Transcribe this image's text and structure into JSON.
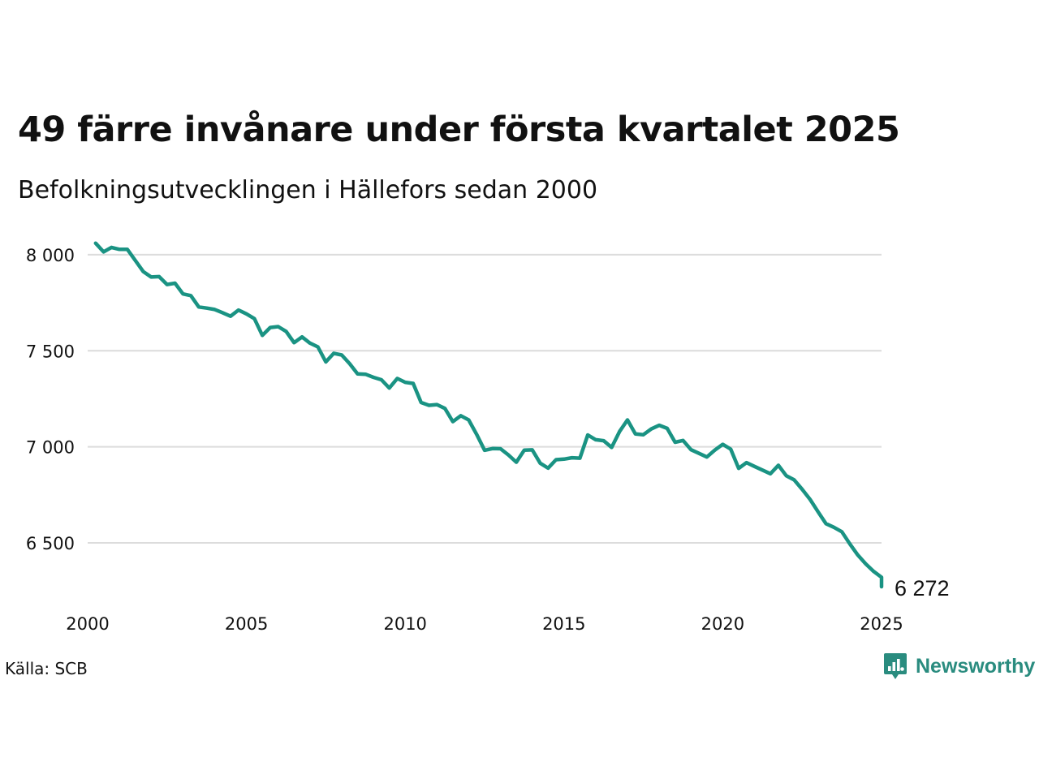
{
  "chart_data": {
    "type": "line",
    "title": "49 färre invånare under första kvartalet 2025",
    "subtitle": "Befolkningsutvecklingen i Hällefors sedan 2000",
    "xlabel": "",
    "ylabel": "",
    "xlim": [
      2000,
      2025
    ],
    "ylim": [
      6272,
      8063
    ],
    "x_ticks": [
      "2000",
      "2005",
      "2010",
      "2015",
      "2020",
      "2025"
    ],
    "y_ticks": [
      "6 500",
      "7 000",
      "7 500",
      "8 000"
    ],
    "y_tick_values": [
      6500,
      7000,
      7500,
      8000
    ],
    "x_tick_values": [
      2000,
      2005,
      2010,
      2015,
      2020,
      2025
    ],
    "grid": "horizontal",
    "legend": "none",
    "line_color": "#1a9383",
    "end_label": "6 272",
    "series": [
      {
        "points": [
          [
            2000.25,
            8060
          ],
          [
            2000.5,
            8015
          ],
          [
            2000.75,
            8038
          ],
          [
            2001.0,
            8028
          ],
          [
            2001.25,
            8028
          ],
          [
            2001.5,
            7970
          ],
          [
            2001.75,
            7912
          ],
          [
            2002.0,
            7884
          ],
          [
            2002.25,
            7886
          ],
          [
            2002.5,
            7845
          ],
          [
            2002.75,
            7852
          ],
          [
            2003.0,
            7796
          ],
          [
            2003.25,
            7787
          ],
          [
            2003.5,
            7728
          ],
          [
            2003.75,
            7722
          ],
          [
            2004.0,
            7715
          ],
          [
            2004.25,
            7698
          ],
          [
            2004.5,
            7680
          ],
          [
            2004.75,
            7712
          ],
          [
            2005.0,
            7692
          ],
          [
            2005.25,
            7667
          ],
          [
            2005.5,
            7580
          ],
          [
            2005.75,
            7621
          ],
          [
            2006.0,
            7626
          ],
          [
            2006.25,
            7601
          ],
          [
            2006.5,
            7542
          ],
          [
            2006.75,
            7572
          ],
          [
            2007.0,
            7540
          ],
          [
            2007.25,
            7520
          ],
          [
            2007.5,
            7442
          ],
          [
            2007.75,
            7487
          ],
          [
            2008.0,
            7478
          ],
          [
            2008.25,
            7433
          ],
          [
            2008.5,
            7380
          ],
          [
            2008.75,
            7378
          ],
          [
            2009.0,
            7362
          ],
          [
            2009.25,
            7349
          ],
          [
            2009.5,
            7306
          ],
          [
            2009.75,
            7356
          ],
          [
            2010.0,
            7336
          ],
          [
            2010.25,
            7330
          ],
          [
            2010.5,
            7231
          ],
          [
            2010.75,
            7216
          ],
          [
            2011.0,
            7220
          ],
          [
            2011.25,
            7200
          ],
          [
            2011.5,
            7131
          ],
          [
            2011.75,
            7162
          ],
          [
            2012.0,
            7140
          ],
          [
            2012.25,
            7065
          ],
          [
            2012.5,
            6982
          ],
          [
            2012.75,
            6991
          ],
          [
            2013.0,
            6990
          ],
          [
            2013.25,
            6958
          ],
          [
            2013.5,
            6920
          ],
          [
            2013.75,
            6983
          ],
          [
            2014.0,
            6984
          ],
          [
            2014.25,
            6915
          ],
          [
            2014.5,
            6889
          ],
          [
            2014.75,
            6933
          ],
          [
            2015.0,
            6936
          ],
          [
            2015.25,
            6943
          ],
          [
            2015.5,
            6941
          ],
          [
            2015.75,
            7062
          ],
          [
            2016.0,
            7037
          ],
          [
            2016.25,
            7032
          ],
          [
            2016.5,
            6997
          ],
          [
            2016.75,
            7080
          ],
          [
            2017.0,
            7140
          ],
          [
            2017.25,
            7067
          ],
          [
            2017.5,
            7063
          ],
          [
            2017.75,
            7093
          ],
          [
            2018.0,
            7112
          ],
          [
            2018.25,
            7096
          ],
          [
            2018.5,
            7024
          ],
          [
            2018.75,
            7033
          ],
          [
            2019.0,
            6985
          ],
          [
            2019.25,
            6966
          ],
          [
            2019.5,
            6947
          ],
          [
            2019.75,
            6983
          ],
          [
            2020.0,
            7013
          ],
          [
            2020.25,
            6988
          ],
          [
            2020.5,
            6888
          ],
          [
            2020.75,
            6918
          ],
          [
            2021.0,
            6898
          ],
          [
            2021.25,
            6879
          ],
          [
            2021.5,
            6860
          ],
          [
            2021.75,
            6904
          ],
          [
            2022.0,
            6850
          ],
          [
            2022.25,
            6828
          ],
          [
            2022.5,
            6779
          ],
          [
            2022.75,
            6726
          ],
          [
            2023.0,
            6662
          ],
          [
            2023.25,
            6600
          ],
          [
            2023.5,
            6581
          ],
          [
            2023.75,
            6558
          ],
          [
            2024.0,
            6495
          ],
          [
            2024.25,
            6437
          ],
          [
            2024.5,
            6391
          ],
          [
            2024.75,
            6352
          ],
          [
            2025.0,
            6321
          ],
          [
            2025.0,
            6272
          ]
        ]
      }
    ]
  },
  "footer": {
    "source": "Källa: SCB",
    "brand": "Newsworthy"
  },
  "colors": {
    "brand": "#2a8c7f",
    "grid": "#dcdcdc",
    "line": "#1a9383"
  },
  "icons": {
    "brand_logo": "newsworthy-logo-icon"
  }
}
